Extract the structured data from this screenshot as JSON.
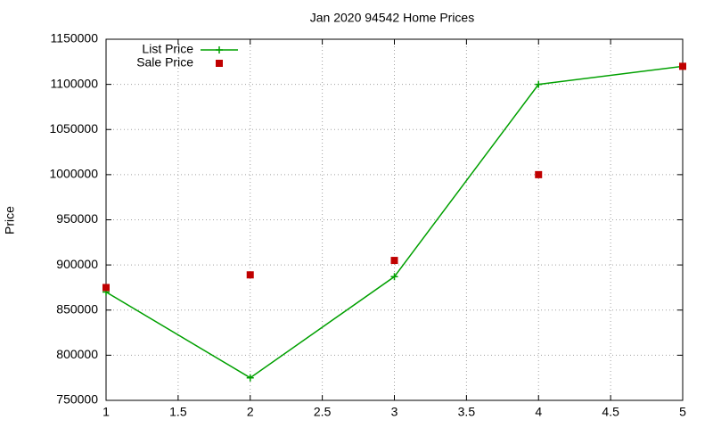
{
  "chart_data": {
    "type": "line",
    "title": "Jan 2020 94542 Home Prices",
    "y_label": "Price",
    "x": [
      1,
      2,
      3,
      4,
      5
    ],
    "series": [
      {
        "name": "List Price",
        "color": "#00a000",
        "style": "linespoints",
        "values": [
          870000,
          775000,
          887000,
          1100000,
          1120000
        ]
      },
      {
        "name": "Sale Price",
        "color": "#c00000",
        "style": "points",
        "values": [
          875000,
          889000,
          905000,
          1000000,
          1120000
        ]
      }
    ],
    "xlim": [
      1,
      5
    ],
    "xticks": [
      1,
      1.5,
      2,
      2.5,
      3,
      3.5,
      4,
      4.5,
      5
    ],
    "ylim": [
      750000,
      1150000
    ],
    "yticks": [
      750000,
      800000,
      850000,
      900000,
      950000,
      1000000,
      1050000,
      1100000,
      1150000
    ],
    "grid": true,
    "legend": "top-left"
  }
}
